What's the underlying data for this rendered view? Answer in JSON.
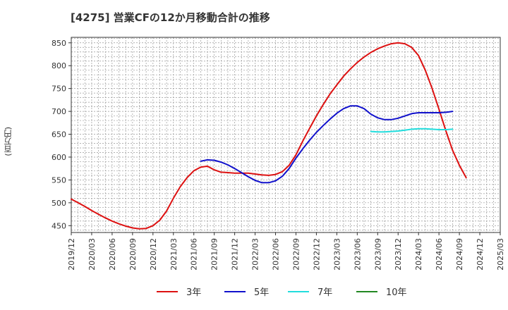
{
  "chart_data": {
    "type": "line",
    "title": "[4275]  営業CFの12か月移動合計の推移",
    "ylabel": "(百万円)",
    "xlabel": "",
    "ylim": [
      435,
      862
    ],
    "yticks": [
      450,
      500,
      550,
      600,
      650,
      700,
      750,
      800,
      850
    ],
    "x_ticks": [
      "2019/12",
      "2020/03",
      "2020/06",
      "2020/09",
      "2020/12",
      "2021/03",
      "2021/06",
      "2021/09",
      "2021/12",
      "2022/03",
      "2022/06",
      "2022/09",
      "2022/12",
      "2023/03",
      "2023/06",
      "2023/09",
      "2023/12",
      "2024/03",
      "2024/06",
      "2024/09",
      "2024/12",
      "2025/03"
    ],
    "grid": true,
    "legend_position": "bottom",
    "series": [
      {
        "name": "3年",
        "color": "#dd1111",
        "values": [
          [
            0,
            508
          ],
          [
            1,
            500
          ],
          [
            2,
            492
          ],
          [
            3,
            483
          ],
          [
            4,
            475
          ],
          [
            5,
            467
          ],
          [
            6,
            460
          ],
          [
            7,
            454
          ],
          [
            8,
            449
          ],
          [
            9,
            445
          ],
          [
            10,
            443
          ],
          [
            11,
            444
          ],
          [
            12,
            450
          ],
          [
            13,
            462
          ],
          [
            14,
            482
          ],
          [
            15,
            510
          ],
          [
            16,
            535
          ],
          [
            17,
            555
          ],
          [
            18,
            570
          ],
          [
            19,
            578
          ],
          [
            20,
            580
          ],
          [
            21,
            572
          ],
          [
            22,
            567
          ],
          [
            23,
            566
          ],
          [
            24,
            565
          ],
          [
            25,
            565
          ],
          [
            26,
            565
          ],
          [
            27,
            563
          ],
          [
            28,
            561
          ],
          [
            29,
            560
          ],
          [
            30,
            562
          ],
          [
            31,
            568
          ],
          [
            32,
            582
          ],
          [
            33,
            605
          ],
          [
            34,
            635
          ],
          [
            35,
            663
          ],
          [
            36,
            690
          ],
          [
            37,
            715
          ],
          [
            38,
            738
          ],
          [
            39,
            758
          ],
          [
            40,
            777
          ],
          [
            41,
            793
          ],
          [
            42,
            807
          ],
          [
            43,
            819
          ],
          [
            44,
            829
          ],
          [
            45,
            837
          ],
          [
            46,
            843
          ],
          [
            47,
            848
          ],
          [
            48,
            850
          ],
          [
            49,
            848
          ],
          [
            50,
            840
          ],
          [
            51,
            822
          ],
          [
            52,
            790
          ],
          [
            53,
            750
          ],
          [
            54,
            705
          ],
          [
            55,
            658
          ],
          [
            56,
            615
          ],
          [
            57,
            582
          ],
          [
            58,
            555
          ]
        ]
      },
      {
        "name": "5年",
        "color": "#1111cc",
        "values": [
          [
            19,
            591
          ],
          [
            20,
            594
          ],
          [
            21,
            593
          ],
          [
            22,
            589
          ],
          [
            23,
            583
          ],
          [
            24,
            575
          ],
          [
            25,
            566
          ],
          [
            26,
            557
          ],
          [
            27,
            549
          ],
          [
            28,
            544
          ],
          [
            29,
            544
          ],
          [
            30,
            548
          ],
          [
            31,
            558
          ],
          [
            32,
            575
          ],
          [
            33,
            598
          ],
          [
            34,
            618
          ],
          [
            35,
            637
          ],
          [
            36,
            654
          ],
          [
            37,
            669
          ],
          [
            38,
            683
          ],
          [
            39,
            696
          ],
          [
            40,
            706
          ],
          [
            41,
            712
          ],
          [
            42,
            712
          ],
          [
            43,
            706
          ],
          [
            44,
            694
          ],
          [
            45,
            686
          ],
          [
            46,
            682
          ],
          [
            47,
            682
          ],
          [
            48,
            685
          ],
          [
            49,
            690
          ],
          [
            50,
            695
          ],
          [
            51,
            697
          ],
          [
            52,
            697
          ],
          [
            53,
            697
          ],
          [
            54,
            697
          ],
          [
            55,
            698
          ],
          [
            56,
            700
          ]
        ]
      },
      {
        "name": "7年",
        "color": "#22dddd",
        "values": [
          [
            44,
            656
          ],
          [
            45,
            655
          ],
          [
            46,
            655
          ],
          [
            47,
            656
          ],
          [
            48,
            657
          ],
          [
            49,
            659
          ],
          [
            50,
            661
          ],
          [
            51,
            662
          ],
          [
            52,
            662
          ],
          [
            53,
            661
          ],
          [
            54,
            660
          ],
          [
            55,
            660
          ],
          [
            56,
            661
          ]
        ]
      },
      {
        "name": "10年",
        "color": "#228822",
        "values": []
      }
    ]
  }
}
